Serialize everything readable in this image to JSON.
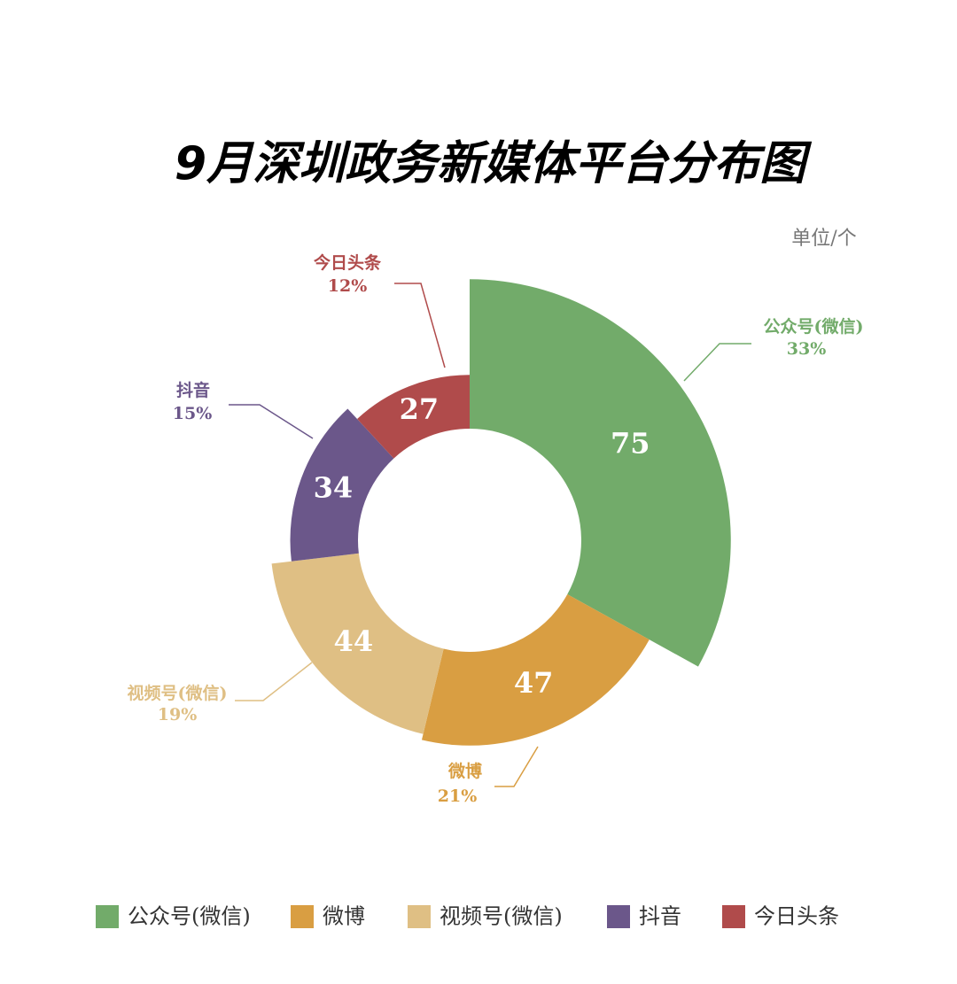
{
  "chart_data": {
    "type": "rose",
    "title": "9月深圳政务新媒体平台分布图",
    "unit_label": "单位/个",
    "categories": [
      "公众号(微信)",
      "微博",
      "视频号(微信)",
      "抖音",
      "今日头条"
    ],
    "values": [
      75,
      47,
      44,
      34,
      27
    ],
    "percent_labels": [
      "33%",
      "21%",
      "19%",
      "15%",
      "12%"
    ],
    "colors": [
      "#72ab6a",
      "#d99e42",
      "#dfbf84",
      "#6b578a",
      "#b04b4b"
    ],
    "legend": "bottom"
  }
}
